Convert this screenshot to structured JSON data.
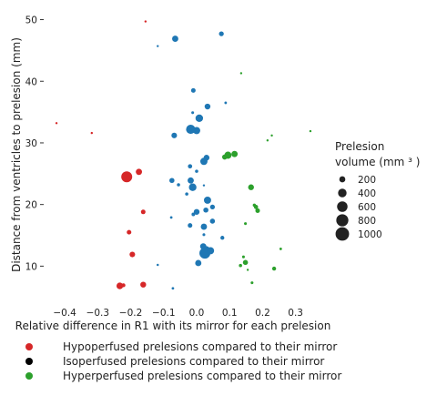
{
  "chart_data": {
    "type": "scatter",
    "xlabel": "Relative difference in R1 with its mirror for each prelesion",
    "ylabel": "Distance from ventricles to prelesion (mm)",
    "xlim": [
      -0.45,
      0.37
    ],
    "ylim": [
      4,
      52
    ],
    "x_ticks": [
      -0.4,
      -0.3,
      -0.2,
      -0.1,
      0.0,
      0.1,
      0.2,
      0.3
    ],
    "x_tick_labels": [
      "−0.4",
      "−0.3",
      "−0.2",
      "−0.1",
      "0.0",
      "0.1",
      "0.2",
      "0.3"
    ],
    "y_ticks": [
      10,
      20,
      30,
      40,
      50
    ],
    "y_tick_labels": [
      "10",
      "20",
      "30",
      "40",
      "50"
    ],
    "grid": false,
    "size_legend": {
      "title_line1": "Prelesion",
      "title_line2": "volume (mm ³ )",
      "values": [
        200,
        400,
        600,
        800,
        1000
      ],
      "labels": [
        "200",
        "400",
        "600",
        "800",
        "1000"
      ]
    },
    "series": [
      {
        "name": "Hypoperfused prelesions compared to their mirror",
        "color": "#d62728",
        "points": [
          {
            "x": -0.155,
            "y": 49.7,
            "size": 10
          },
          {
            "x": -0.425,
            "y": 33.2,
            "size": 15
          },
          {
            "x": -0.318,
            "y": 31.6,
            "size": 12
          },
          {
            "x": -0.212,
            "y": 24.5,
            "size": 460
          },
          {
            "x": -0.175,
            "y": 25.3,
            "size": 150
          },
          {
            "x": -0.162,
            "y": 18.8,
            "size": 80
          },
          {
            "x": -0.205,
            "y": 15.5,
            "size": 80
          },
          {
            "x": -0.195,
            "y": 11.9,
            "size": 120
          },
          {
            "x": -0.233,
            "y": 6.8,
            "size": 170
          },
          {
            "x": -0.222,
            "y": 6.9,
            "size": 60
          },
          {
            "x": -0.162,
            "y": 7.0,
            "size": 130
          }
        ]
      },
      {
        "name": "Isoperfused prelesions compared to their mirror",
        "color": "#1f77b4",
        "points": [
          {
            "x": -0.065,
            "y": 46.9,
            "size": 150
          },
          {
            "x": 0.075,
            "y": 47.7,
            "size": 90
          },
          {
            "x": -0.118,
            "y": 45.7,
            "size": 12
          },
          {
            "x": -0.01,
            "y": 38.5,
            "size": 80
          },
          {
            "x": 0.033,
            "y": 35.9,
            "size": 130
          },
          {
            "x": 0.088,
            "y": 36.5,
            "size": 25
          },
          {
            "x": -0.012,
            "y": 34.9,
            "size": 30
          },
          {
            "x": 0.008,
            "y": 34.0,
            "size": 220
          },
          {
            "x": -0.018,
            "y": 32.2,
            "size": 330
          },
          {
            "x": 0.0,
            "y": 32.0,
            "size": 200
          },
          {
            "x": -0.068,
            "y": 31.2,
            "size": 120
          },
          {
            "x": 0.03,
            "y": 27.6,
            "size": 130
          },
          {
            "x": 0.022,
            "y": 27.0,
            "size": 200
          },
          {
            "x": -0.02,
            "y": 26.2,
            "size": 70
          },
          {
            "x": 0.0,
            "y": 25.4,
            "size": 40
          },
          {
            "x": -0.075,
            "y": 23.9,
            "size": 100
          },
          {
            "x": -0.055,
            "y": 23.2,
            "size": 40
          },
          {
            "x": -0.018,
            "y": 23.9,
            "size": 150
          },
          {
            "x": -0.012,
            "y": 22.8,
            "size": 220
          },
          {
            "x": -0.03,
            "y": 21.7,
            "size": 40
          },
          {
            "x": 0.022,
            "y": 23.1,
            "size": 10
          },
          {
            "x": 0.033,
            "y": 20.7,
            "size": 200
          },
          {
            "x": 0.048,
            "y": 19.6,
            "size": 90
          },
          {
            "x": 0.028,
            "y": 19.1,
            "size": 100
          },
          {
            "x": 0.0,
            "y": 18.8,
            "size": 130
          },
          {
            "x": -0.01,
            "y": 18.4,
            "size": 50
          },
          {
            "x": -0.077,
            "y": 17.9,
            "size": 25
          },
          {
            "x": -0.02,
            "y": 16.6,
            "size": 80
          },
          {
            "x": 0.022,
            "y": 16.4,
            "size": 150
          },
          {
            "x": 0.048,
            "y": 17.3,
            "size": 100
          },
          {
            "x": 0.022,
            "y": 15.1,
            "size": 30
          },
          {
            "x": 0.078,
            "y": 14.6,
            "size": 60
          },
          {
            "x": 0.02,
            "y": 13.2,
            "size": 150
          },
          {
            "x": 0.03,
            "y": 12.8,
            "size": 120
          },
          {
            "x": 0.025,
            "y": 12.1,
            "size": 460
          },
          {
            "x": 0.042,
            "y": 12.5,
            "size": 200
          },
          {
            "x": 0.005,
            "y": 10.5,
            "size": 150
          },
          {
            "x": -0.118,
            "y": 10.2,
            "size": 20
          },
          {
            "x": -0.072,
            "y": 6.4,
            "size": 25
          }
        ]
      },
      {
        "name": "Hyperperfused prelesions compared to their mirror",
        "color": "#2ca02c",
        "points": [
          {
            "x": 0.135,
            "y": 41.3,
            "size": 15
          },
          {
            "x": 0.345,
            "y": 31.9,
            "size": 15
          },
          {
            "x": 0.228,
            "y": 31.2,
            "size": 15
          },
          {
            "x": 0.215,
            "y": 30.4,
            "size": 15
          },
          {
            "x": 0.085,
            "y": 27.7,
            "size": 100
          },
          {
            "x": 0.095,
            "y": 28.0,
            "size": 200
          },
          {
            "x": 0.115,
            "y": 28.2,
            "size": 150
          },
          {
            "x": 0.165,
            "y": 22.8,
            "size": 130
          },
          {
            "x": 0.18,
            "y": 19.6,
            "size": 70
          },
          {
            "x": 0.175,
            "y": 19.9,
            "size": 40
          },
          {
            "x": 0.185,
            "y": 19.0,
            "size": 80
          },
          {
            "x": 0.148,
            "y": 16.9,
            "size": 30
          },
          {
            "x": 0.255,
            "y": 12.8,
            "size": 25
          },
          {
            "x": 0.142,
            "y": 11.5,
            "size": 30
          },
          {
            "x": 0.148,
            "y": 10.6,
            "size": 100
          },
          {
            "x": 0.133,
            "y": 10.1,
            "size": 40
          },
          {
            "x": 0.155,
            "y": 9.4,
            "size": 15
          },
          {
            "x": 0.235,
            "y": 9.6,
            "size": 60
          },
          {
            "x": 0.168,
            "y": 7.3,
            "size": 30
          }
        ]
      }
    ]
  },
  "legend": {
    "entries": [
      {
        "label": "Hypoperfused prelesions compared to their mirror",
        "color": "#d62728"
      },
      {
        "label": "Isoperfused prelesions compared to their mirror",
        "color": "#000000"
      },
      {
        "label": "Hyperperfused prelesions compared to their mirror",
        "color": "#2ca02c"
      }
    ]
  }
}
